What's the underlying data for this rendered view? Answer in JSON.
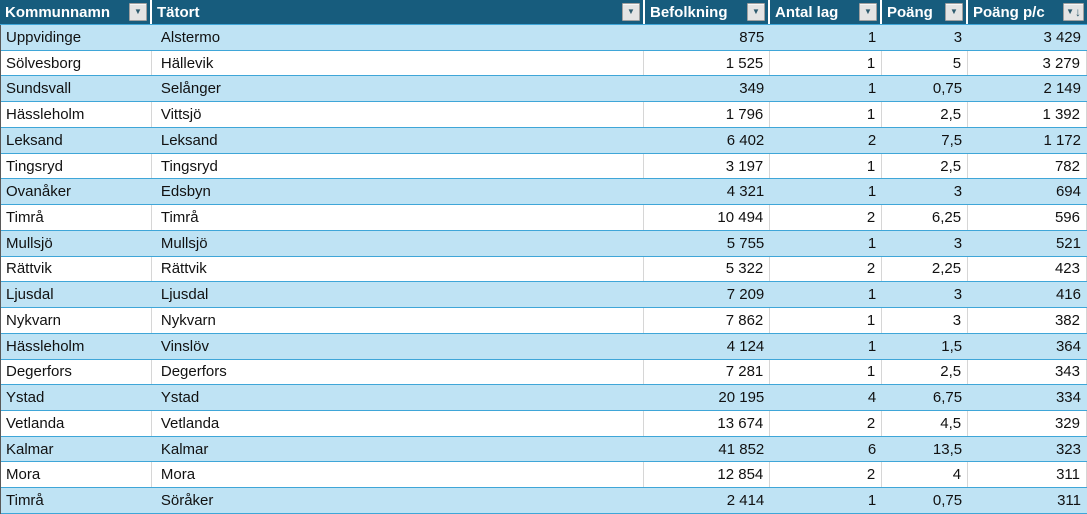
{
  "table": {
    "columns": [
      {
        "label": "Kommunnamn",
        "align": "left",
        "filter": "dropdown"
      },
      {
        "label": "Tätort",
        "align": "left",
        "filter": "dropdown"
      },
      {
        "label": "Befolkning",
        "align": "right",
        "filter": "dropdown"
      },
      {
        "label": "Antal lag",
        "align": "right",
        "filter": "dropdown"
      },
      {
        "label": "Poäng",
        "align": "right",
        "filter": "dropdown"
      },
      {
        "label": "Poäng p/c",
        "align": "right",
        "filter": "dropdown-sorted-descending"
      }
    ],
    "rows": [
      [
        "Uppvidinge",
        "Alstermo",
        "875",
        "1",
        "3",
        "3 429"
      ],
      [
        "Sölvesborg",
        "Hällevik",
        "1 525",
        "1",
        "5",
        "3 279"
      ],
      [
        "Sundsvall",
        "Selånger",
        "349",
        "1",
        "0,75",
        "2 149"
      ],
      [
        "Hässleholm",
        "Vittsjö",
        "1 796",
        "1",
        "2,5",
        "1 392"
      ],
      [
        "Leksand",
        "Leksand",
        "6 402",
        "2",
        "7,5",
        "1 172"
      ],
      [
        "Tingsryd",
        "Tingsryd",
        "3 197",
        "1",
        "2,5",
        "782"
      ],
      [
        "Ovanåker",
        "Edsbyn",
        "4 321",
        "1",
        "3",
        "694"
      ],
      [
        "Timrå",
        "Timrå",
        "10 494",
        "2",
        "6,25",
        "596"
      ],
      [
        "Mullsjö",
        "Mullsjö",
        "5 755",
        "1",
        "3",
        "521"
      ],
      [
        "Rättvik",
        "Rättvik",
        "5 322",
        "2",
        "2,25",
        "423"
      ],
      [
        "Ljusdal",
        "Ljusdal",
        "7 209",
        "1",
        "3",
        "416"
      ],
      [
        "Nykvarn",
        "Nykvarn",
        "7 862",
        "1",
        "3",
        "382"
      ],
      [
        "Hässleholm",
        "Vinslöv",
        "4 124",
        "1",
        "1,5",
        "364"
      ],
      [
        "Degerfors",
        "Degerfors",
        "7 281",
        "1",
        "2,5",
        "343"
      ],
      [
        "Ystad",
        "Ystad",
        "20 195",
        "4",
        "6,75",
        "334"
      ],
      [
        "Vetlanda",
        "Vetlanda",
        "13 674",
        "2",
        "4,5",
        "329"
      ],
      [
        "Kalmar",
        "Kalmar",
        "41 852",
        "6",
        "13,5",
        "323"
      ],
      [
        "Mora",
        "Mora",
        "12 854",
        "2",
        "4",
        "311"
      ],
      [
        "Timrå",
        "Söråker",
        "2 414",
        "1",
        "0,75",
        "311"
      ]
    ]
  },
  "icons": {
    "filter_dropdown": "▼",
    "sort_descending": "↓"
  },
  "colors": {
    "header_bg": "#175C7D",
    "header_text": "#FFFFFF",
    "banded_row_bg": "#BFE3F4",
    "plain_row_bg": "#FFFFFF",
    "row_border": "#3FA6D8",
    "grid_line": "#D6D6D6",
    "cell_text": "#111111",
    "filter_button_bg": "#E4E4E4",
    "filter_glyph": "#2E5B6E"
  }
}
